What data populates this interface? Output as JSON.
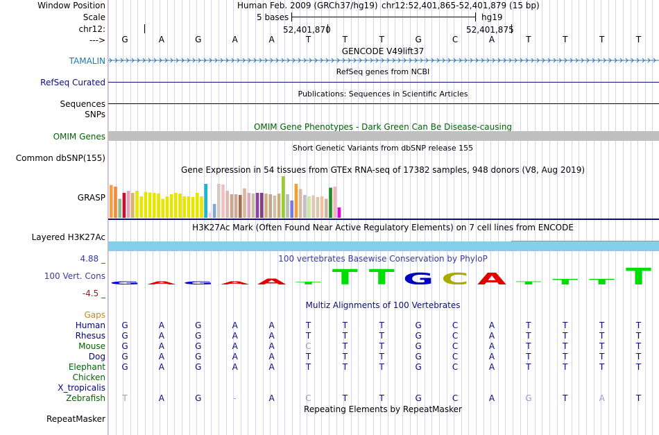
{
  "header": {
    "window_position_label": "Window Position",
    "scale_label": "Scale",
    "chrom_label": "chr12:",
    "strand_label": "--->",
    "assembly": "Human Feb. 2009 (GRCh37/hg19)",
    "position": "chr12:52,401,865-52,401,879 (15 bp)",
    "scale_text": "5 bases",
    "scale_db": "hg19",
    "coord1": "52,401,870",
    "coord2": "52,401,875"
  },
  "bases": [
    "G",
    "A",
    "G",
    "A",
    "A",
    "T",
    "T",
    "T",
    "G",
    "C",
    "A",
    "T",
    "T",
    "T",
    "T"
  ],
  "tracks": {
    "gencode_title": "GENCODE V49lift37",
    "tamalin_label": "TAMALIN",
    "refseq_title": "RefSeq genes from NCBI",
    "refseq_label": "RefSeq Curated",
    "pubs_title": "Publications: Sequences in Scientific Articles",
    "sequences_label": "Sequences",
    "snps_label": "SNPs",
    "omim_title": "OMIM Gene Phenotypes - Dark Green Can Be Disease-causing",
    "omim_label": "OMIM Genes",
    "dbsnp_title": "Short Genetic Variants from dbSNP release 155",
    "dbsnp_label": "Common dbSNP(155)",
    "gtex_title": "Gene Expression in 54 tissues from GTEx RNA-seq of 17382 samples, 948 donors (V8, Aug 2019)",
    "grasp_label": "GRASP",
    "h3k27_title": "H3K27Ac Mark (Often Found Near Active Regulatory Elements) on 7 cell lines from ENCODE",
    "h3k27_label": "Layered H3K27Ac",
    "phylop_title": "100 vertebrates Basewise Conservation by PhyloP",
    "phylop_label": "100 Vert. Cons",
    "phylop_max": "4.88 _",
    "phylop_min": "-4.5 _",
    "multiz_title": "Multiz Alignments of 100 Vertebrates",
    "gaps_label": "Gaps",
    "repeat_title": "Repeating Elements by RepeatMasker",
    "repeat_label": "RepeatMasker"
  },
  "gtex_values": [
    0.95,
    0.9,
    0.55,
    0.72,
    0.78,
    0.72,
    0.78,
    0.62,
    0.75,
    0.73,
    0.72,
    0.7,
    0.55,
    0.62,
    0.68,
    0.72,
    0.7,
    0.62,
    0.62,
    0.6,
    0.72,
    0.62,
    0.98,
    0.15,
    0.4,
    0.98,
    0.96,
    0.78,
    0.68,
    0.68,
    0.66,
    0.85,
    0.72,
    0.7,
    0.72,
    0.72,
    0.7,
    0.68,
    0.64,
    0.7,
    1.2,
    0.68,
    0.5,
    0.98,
    0.83,
    0.66,
    0.62,
    0.65,
    0.6,
    0.62,
    0.55,
    0.87,
    0.9,
    0.3
  ],
  "gtex_colors": [
    "#f5a142",
    "#f08a3c",
    "#8fbc8f",
    "#c8102e",
    "#e8a2b8",
    "#d9b466",
    "#e6e600",
    "#e6e600",
    "#e6e600",
    "#e6e600",
    "#e6e600",
    "#e6e600",
    "#e6e600",
    "#e6e600",
    "#e6e600",
    "#e6e600",
    "#e6e600",
    "#e6e600",
    "#e6e600",
    "#e6e600",
    "#e6e600",
    "#e6e600",
    "#18b8c8",
    "#eeccee",
    "#80a8d0",
    "#d8c8c0",
    "#f0c0c0",
    "#e0b8b0",
    "#c8a890",
    "#d0a890",
    "#a07050",
    "#d8b8a0",
    "#e0a8c0",
    "#c8c0a0",
    "#9040a0",
    "#8b3a8b",
    "#d8b080",
    "#c0a890",
    "#d0c0a8",
    "#c8b080",
    "#99cc33",
    "#b8c0b0",
    "#7878e8",
    "#f0a030",
    "#d8b8a8",
    "#c0c0c0",
    "#c8e8a0",
    "#e0c8b0",
    "#d8c8b0",
    "#f0c0a0",
    "#c8b8a8",
    "#228b22",
    "#f0b8b8",
    "#e000e0"
  ],
  "phylop": {
    "letters": [
      "G",
      "A",
      "G",
      "A",
      "A",
      "T",
      "T",
      "T",
      "G",
      "C",
      "A",
      "T",
      "T",
      "T",
      "T"
    ],
    "heights": [
      0.14,
      0.14,
      0.14,
      0.14,
      0.26,
      0.12,
      0.68,
      0.68,
      0.52,
      0.52,
      0.52,
      0.14,
      0.25,
      0.25,
      0.74
    ],
    "colors": {
      "G": "#0000c0",
      "A": "#e00000",
      "T": "#00dd00",
      "C": "#aaaa00"
    }
  },
  "alignment_rows": [
    {
      "species": "Human",
      "color": "#000080",
      "bases": [
        "G",
        "A",
        "G",
        "A",
        "A",
        "T",
        "T",
        "T",
        "G",
        "C",
        "A",
        "T",
        "T",
        "T",
        "T"
      ],
      "light": []
    },
    {
      "species": "Rhesus",
      "color": "#000080",
      "bases": [
        "G",
        "A",
        "G",
        "A",
        "A",
        "T",
        "T",
        "T",
        "G",
        "C",
        "A",
        "T",
        "T",
        "T",
        "T"
      ],
      "light": []
    },
    {
      "species": "Mouse",
      "color": "#006400",
      "bases": [
        "G",
        "A",
        "G",
        "A",
        "A",
        "C",
        "T",
        "T",
        "G",
        "C",
        "A",
        "T",
        "T",
        "T",
        "T"
      ],
      "light": [
        5
      ]
    },
    {
      "species": "Dog",
      "color": "#000080",
      "bases": [
        "G",
        "A",
        "G",
        "A",
        "A",
        "T",
        "T",
        "T",
        "G",
        "C",
        "A",
        "T",
        "T",
        "T",
        "T"
      ],
      "light": []
    },
    {
      "species": "Elephant",
      "color": "#006400",
      "bases": [
        "G",
        "A",
        "G",
        "A",
        "A",
        "T",
        "T",
        "T",
        "G",
        "C",
        "A",
        "T",
        "T",
        "T",
        "T"
      ],
      "light": []
    },
    {
      "species": "Chicken",
      "color": "#006400",
      "bases": [],
      "light": []
    },
    {
      "species": "X_tropicalis",
      "color": "#000080",
      "bases": [],
      "light": []
    },
    {
      "species": "Zebrafish",
      "color": "#006400",
      "bases": [
        "T",
        "A",
        "G",
        "-",
        "A",
        "C",
        "T",
        "T",
        "G",
        "C",
        "A",
        "G",
        "T",
        "A",
        "T"
      ],
      "light": [
        0,
        3,
        5,
        11,
        13
      ]
    }
  ]
}
